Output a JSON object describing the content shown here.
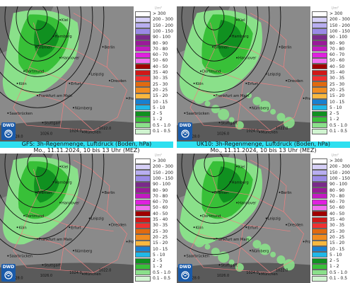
{
  "panels": [
    {
      "id": "tl",
      "model": "",
      "line1": "",
      "line2": "Mo., 11.11.2024, 10 bis 13 Uhr (MEZ)",
      "cropped_top": true
    },
    {
      "id": "tr",
      "model": "",
      "line1": "",
      "line2": "Mo., 11.11.2024, 10 bis 13 Uhr (MEZ)",
      "cropped_top": true
    },
    {
      "id": "bl",
      "model": "GFS: 3h-Regenmenge, Luftdruck (Boden, hPa)",
      "line1": "GFS: 3h-Regenmenge, Luftdruck (Boden, hPa)",
      "line2": "Mo., 11.11.2024, 10 bis 13 Uhr (MEZ)",
      "cropped_top": false
    },
    {
      "id": "br",
      "model": "UK10: 3h-Regenmenge, Luftdruck (Boden, hPa)",
      "line1": "UK10: 3h-Regenmenge, Luftdruck (Boden, hPa)",
      "line2": "Mo., 11.11.2024, 10 bis 13 Uhr (MEZ)",
      "cropped_top": false
    }
  ],
  "legend": {
    "unit": "l/m²",
    "classes": [
      {
        "label": "> 300",
        "color": "#ffffff"
      },
      {
        "label": "200 - 300",
        "color": "#d6d0f7"
      },
      {
        "label": "150 - 200",
        "color": "#b8aef0"
      },
      {
        "label": "100 - 150",
        "color": "#9a8ae6"
      },
      {
        "label": "90 - 100",
        "color": "#7a2a8a"
      },
      {
        "label": "80 - 90",
        "color": "#9a1a9a"
      },
      {
        "label": "70 - 80",
        "color": "#c21ac2"
      },
      {
        "label": "60 - 70",
        "color": "#e020e0"
      },
      {
        "label": "50 - 60",
        "color": "#f070f0"
      },
      {
        "label": "40 - 50",
        "color": "#a00000"
      },
      {
        "label": "35 - 40",
        "color": "#d01818"
      },
      {
        "label": "30 - 35",
        "color": "#f03030"
      },
      {
        "label": "25 - 30",
        "color": "#e06a10"
      },
      {
        "label": "20 - 25",
        "color": "#f08c20"
      },
      {
        "label": "15 - 20",
        "color": "#f8b840"
      },
      {
        "label": "10 - 15",
        "color": "#1880d0"
      },
      {
        "label": "5 - 10",
        "color": "#20b8e8"
      },
      {
        "label": "2 - 5",
        "color": "#109020"
      },
      {
        "label": "1 - 2",
        "color": "#38c038"
      },
      {
        "label": "0.5 - 1.0",
        "color": "#8ae08a"
      },
      {
        "label": "0.1 - 0.5",
        "color": "#d0f4d0"
      }
    ]
  },
  "logo": "DWD",
  "logo_icon": "dwd-spiral-icon",
  "cities": [
    "Kiel",
    "Hamburg",
    "Bremen",
    "Hannover",
    "Berlin",
    "Dortmund",
    "Köln",
    "Leipzig",
    "Erfurt",
    "Dresden",
    "Frankfurt am Main",
    "Saarbrücken",
    "Nürnberg",
    "Prag",
    "Stuttgart",
    "München"
  ],
  "pressure_labels": [
    "1028.0",
    "1026.0",
    "1024.0",
    "1022.0",
    "1020.0",
    "1018.0"
  ],
  "colors": {
    "sea": "#6e6e6e",
    "land": "#8a8a8a",
    "border": "#f08080",
    "isobar": "#111111",
    "header_model": "#2ee0f0",
    "logo": "#1a5aa8"
  }
}
